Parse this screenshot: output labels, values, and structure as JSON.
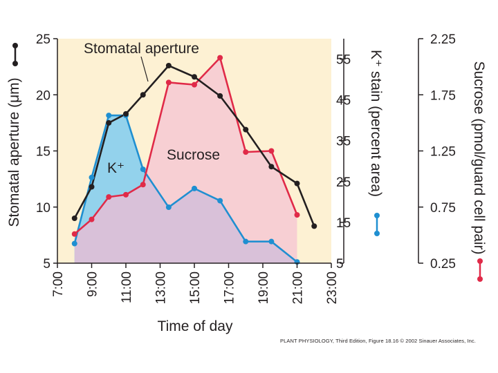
{
  "colors": {
    "background": "#fdf1d3",
    "aperture": "#231f20",
    "potassium": "#1f8fd1",
    "potassium_fill": "#93d2ec",
    "sucrose": "#e02a48",
    "sucrose_fill": "#f7cfd3",
    "overlap_fill": "#d9c1d9"
  },
  "chart_data": {
    "type": "line",
    "title": "",
    "xlabel": "Time of day",
    "x_ticks": [
      "7:00",
      "9:00",
      "11:00",
      "13:00",
      "15:00",
      "17:00",
      "19:00",
      "21:00",
      "23:00"
    ],
    "xlim": [
      7,
      23
    ],
    "axes": {
      "aperture": {
        "label": "Stomatal aperture (μm)",
        "ylim": [
          5,
          25
        ],
        "ticks": [
          "5",
          "10",
          "15",
          "20",
          "25"
        ]
      },
      "potassium": {
        "label": "K⁺ stain (percent area)",
        "ylim": [
          5,
          60
        ],
        "ticks": [
          "5",
          "15",
          "25",
          "35",
          "45",
          "55"
        ]
      },
      "sucrose": {
        "label": "Sucrose (pmol/guard cell pair)",
        "ylim": [
          0.25,
          2.25
        ],
        "ticks": [
          "0.25",
          "0.75",
          "1.25",
          "1.75",
          "2.25"
        ]
      }
    },
    "series": [
      {
        "name": "Stomatal aperture",
        "axis": "aperture",
        "color": "#231f20",
        "x": [
          8,
          9,
          10,
          11,
          12,
          13.5,
          15,
          16.5,
          18,
          19.5,
          21,
          22
        ],
        "y": [
          9.0,
          11.8,
          17.5,
          18.3,
          20.0,
          22.6,
          21.6,
          19.9,
          16.9,
          13.6,
          12.1,
          8.3
        ]
      },
      {
        "name": "K⁺",
        "axis": "potassium",
        "color": "#1f8fd1",
        "x": [
          8,
          9,
          10,
          11,
          12,
          13.5,
          15,
          16.5,
          18,
          19.5,
          21
        ],
        "y": [
          9.8,
          26.0,
          41.2,
          41.2,
          28.0,
          18.7,
          23.3,
          20.3,
          10.3,
          10.3,
          5.3
        ]
      },
      {
        "name": "Sucrose",
        "axis": "sucrose",
        "color": "#e02a48",
        "x": [
          8,
          9,
          10,
          11,
          12,
          13.5,
          15,
          16.5,
          18,
          19.5,
          21
        ],
        "y": [
          0.51,
          0.64,
          0.84,
          0.86,
          0.95,
          1.86,
          1.84,
          2.08,
          1.24,
          1.25,
          0.68
        ]
      }
    ],
    "annotations": {
      "aperture_label": "Stomatal aperture",
      "potassium_label": "K⁺",
      "sucrose_label": "Sucrose"
    }
  },
  "credit": "PLANT PHYSIOLOGY, Third Edition, Figure 18.16  © 2002 Sinauer Associates, Inc."
}
